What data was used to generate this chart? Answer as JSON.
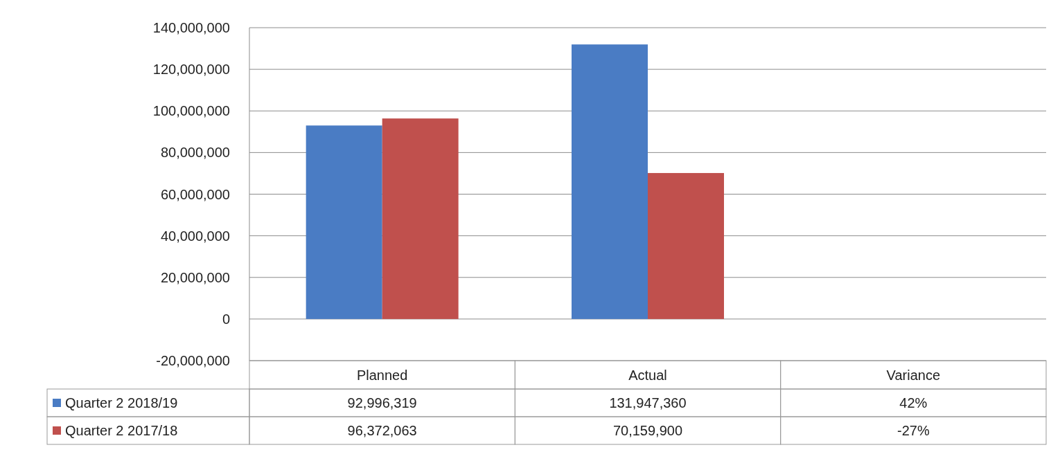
{
  "chart_data": {
    "type": "bar",
    "categories": [
      "Planned",
      "Actual",
      "Variance"
    ],
    "series": [
      {
        "name": "Quarter 2 2018/19",
        "color": "#4a7cc4",
        "values": [
          92996319,
          131947360,
          0.42
        ],
        "value_labels": [
          "92,996,319",
          "131,947,360",
          "42%"
        ]
      },
      {
        "name": "Quarter 2 2017/18",
        "color": "#c0504d",
        "values": [
          96372063,
          70159900,
          -0.27
        ],
        "value_labels": [
          "96,372,063",
          "70,159,900",
          "-27%"
        ]
      }
    ],
    "ylim": [
      -20000000,
      140000000
    ],
    "yticks": [
      {
        "value": -20000000,
        "label": "-20,000,000"
      },
      {
        "value": 0,
        "label": "0"
      },
      {
        "value": 20000000,
        "label": "20,000,000"
      },
      {
        "value": 40000000,
        "label": "40,000,000"
      },
      {
        "value": 60000000,
        "label": "60,000,000"
      },
      {
        "value": 80000000,
        "label": "80,000,000"
      },
      {
        "value": 100000000,
        "label": "100,000,000"
      },
      {
        "value": 120000000,
        "label": "120,000,000"
      },
      {
        "value": 140000000,
        "label": "140,000,000"
      }
    ],
    "grid": true,
    "legend": "bottom"
  }
}
